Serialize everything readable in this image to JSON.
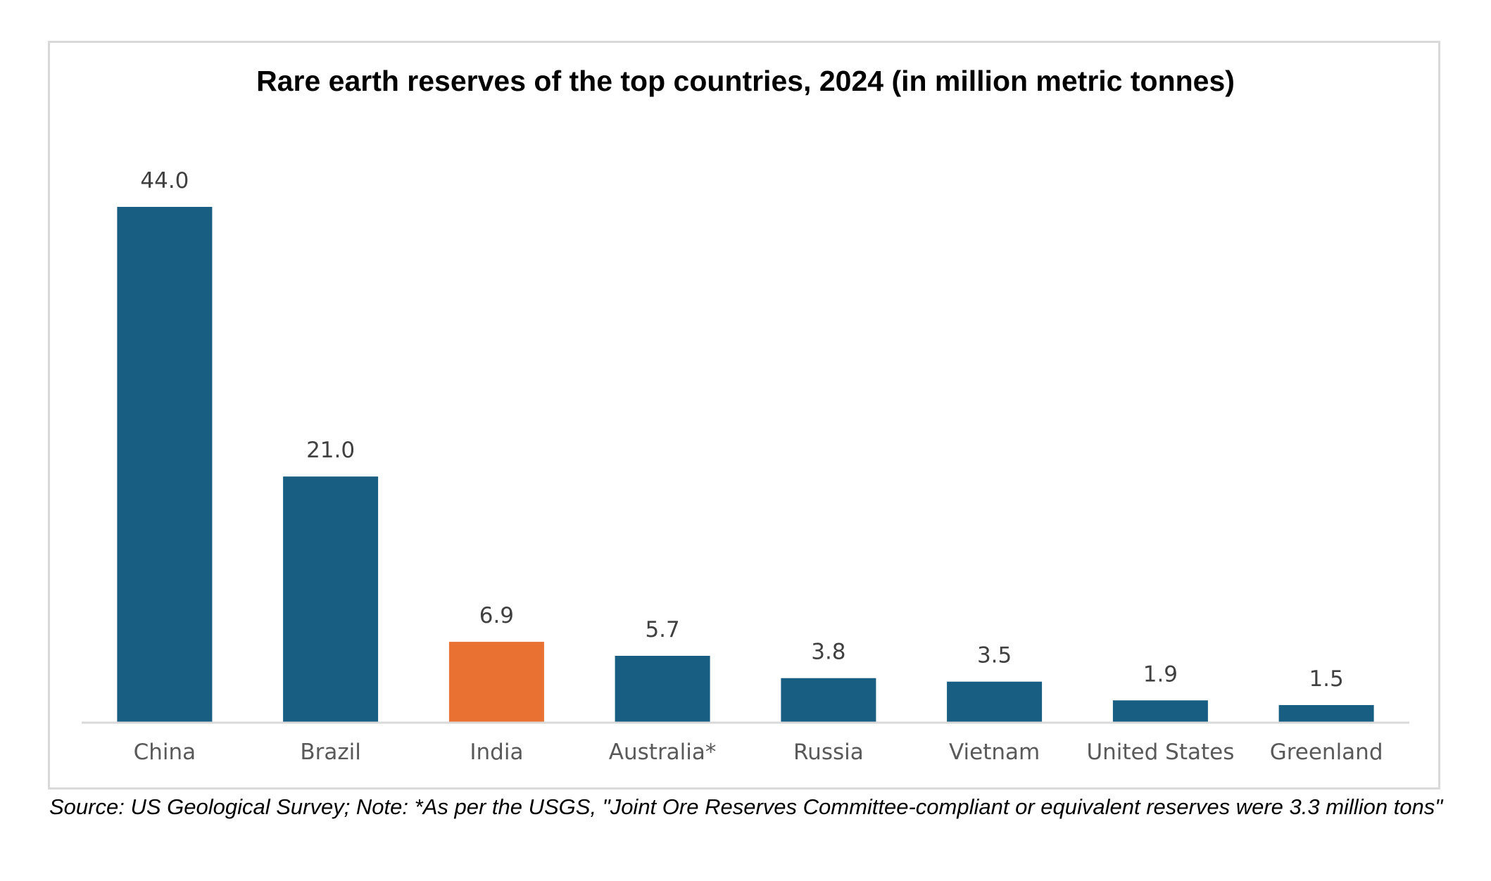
{
  "chart_data": {
    "type": "bar",
    "title": "Rare earth reserves of the top countries, 2024 (in million metric tonnes)",
    "categories": [
      "China",
      "Brazil",
      "India",
      "Australia*",
      "Russia",
      "Vietnam",
      "United States",
      "Greenland"
    ],
    "values": [
      44.0,
      21.0,
      6.9,
      5.7,
      3.8,
      3.5,
      1.9,
      1.5
    ],
    "value_labels": [
      "44.0",
      "21.0",
      "6.9",
      "5.7",
      "3.8",
      "3.5",
      "1.9",
      "1.5"
    ],
    "highlight_category": "India",
    "colors": {
      "default_bar": "#175e82",
      "highlight_bar": "#e97132",
      "axis": "#d9d9d9"
    },
    "xlabel": "",
    "ylabel": "",
    "ylim": [
      0,
      44
    ],
    "grid": false,
    "legend": "none"
  },
  "footer": {
    "source_note": "Source: US Geological Survey; Note: *As per the USGS, \"Joint Ore Reserves Committee-compliant or equivalent reserves were 3.3 million tons\""
  }
}
